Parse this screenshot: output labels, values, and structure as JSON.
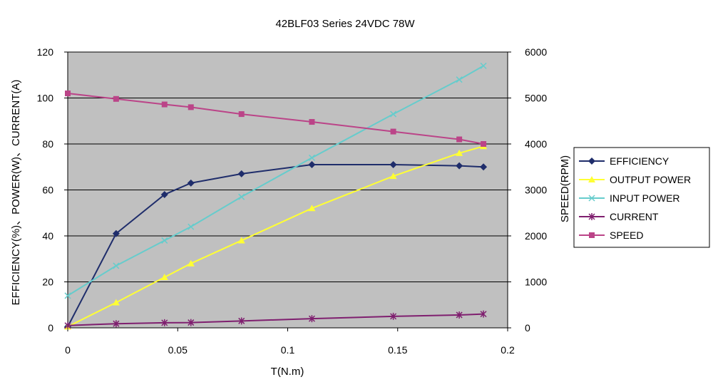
{
  "chart_data": {
    "type": "line",
    "title": "42BLF03 Series 24VDC 78W",
    "xlabel": "T(N.m)",
    "ylabel_left": "EFFICIENCY(%)、POWER(W)、CURRENT(A)",
    "ylabel_right": "SPEED(RPM)",
    "xlim": [
      0,
      0.2
    ],
    "ylim_left": [
      0,
      120
    ],
    "ylim_right": [
      0,
      6000
    ],
    "x_ticks": [
      "0",
      "0.05",
      "0.1",
      "0.15",
      "0.2"
    ],
    "y_left_ticks": [
      "0",
      "20",
      "40",
      "60",
      "80",
      "100",
      "120"
    ],
    "y_right_ticks": [
      "0",
      "1000",
      "2000",
      "3000",
      "4000",
      "5000",
      "6000"
    ],
    "grid": "horizontal",
    "legend_position": "right",
    "plot_background": "#c0c0c0",
    "series": [
      {
        "name": "EFFICIENCY",
        "axis": "left",
        "color": "#1f2d6b",
        "marker": "diamond",
        "x": [
          0.0,
          0.022,
          0.044,
          0.056,
          0.079,
          0.111,
          0.148,
          0.178,
          0.189
        ],
        "y": [
          0.5,
          41,
          58,
          63,
          67,
          71,
          71,
          70.5,
          70
        ]
      },
      {
        "name": "OUTPUT POWER",
        "axis": "left",
        "color": "#ffff33",
        "marker": "triangle",
        "x": [
          0.0,
          0.022,
          0.044,
          0.056,
          0.079,
          0.111,
          0.148,
          0.178,
          0.189
        ],
        "y": [
          0.5,
          11,
          22,
          28,
          38,
          52,
          66,
          76,
          79
        ]
      },
      {
        "name": "INPUT POWER",
        "axis": "left",
        "color": "#66cccc",
        "marker": "x",
        "x": [
          0.0,
          0.022,
          0.044,
          0.056,
          0.079,
          0.111,
          0.148,
          0.178,
          0.189
        ],
        "y": [
          14,
          27,
          38,
          44,
          57,
          74,
          93,
          108,
          114
        ]
      },
      {
        "name": "CURRENT",
        "axis": "left",
        "color": "#7f1f6f",
        "marker": "asterisk",
        "x": [
          0.0,
          0.022,
          0.044,
          0.056,
          0.079,
          0.111,
          0.148,
          0.178,
          0.189
        ],
        "y": [
          1,
          1.8,
          2.2,
          2.3,
          3,
          4,
          5,
          5.6,
          6
        ]
      },
      {
        "name": "SPEED",
        "axis": "right",
        "color": "#bb4488",
        "marker": "square",
        "x": [
          0.0,
          0.022,
          0.044,
          0.056,
          0.079,
          0.111,
          0.148,
          0.178,
          0.189
        ],
        "y": [
          5100,
          4980,
          4860,
          4800,
          4650,
          4480,
          4270,
          4100,
          4000
        ]
      }
    ]
  }
}
